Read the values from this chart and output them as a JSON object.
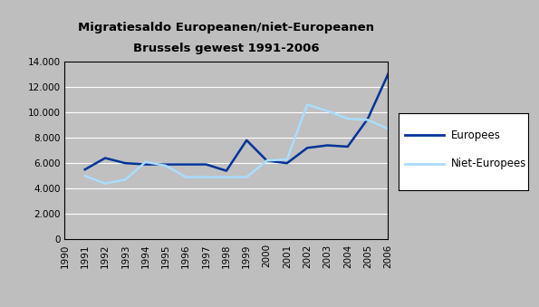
{
  "title_line1": "Migratiesaldo Europeanen/niet-Europeanen",
  "title_line2": "Brussels gewest 1991-2006",
  "years": [
    1990,
    1991,
    1992,
    1993,
    1994,
    1995,
    1996,
    1997,
    1998,
    1999,
    2000,
    2001,
    2002,
    2003,
    2004,
    2005,
    2006
  ],
  "europees": [
    null,
    5500,
    6400,
    6000,
    5900,
    5900,
    5900,
    5900,
    5400,
    7800,
    6200,
    6000,
    7200,
    7400,
    7300,
    9500,
    13000
  ],
  "niet_europees": [
    null,
    5000,
    4400,
    4700,
    6100,
    5800,
    4900,
    4900,
    4900,
    4900,
    6200,
    6300,
    10600,
    10100,
    9500,
    9400,
    8700
  ],
  "europees_color": "#003399",
  "niet_europees_color": "#aaddff",
  "ylim": [
    0,
    14000
  ],
  "yticks": [
    0,
    2000,
    4000,
    6000,
    8000,
    10000,
    12000,
    14000
  ],
  "ytick_labels": [
    "0",
    "2.000",
    "4.000",
    "6.000",
    "8.000",
    "10.000",
    "12.000",
    "14.000"
  ],
  "plot_bg_color": "#c0c0c0",
  "outer_bg_color": "#bebebe",
  "legend_europees": "Europees",
  "legend_niet_europees": "Niet-Europees",
  "line_width": 1.8
}
